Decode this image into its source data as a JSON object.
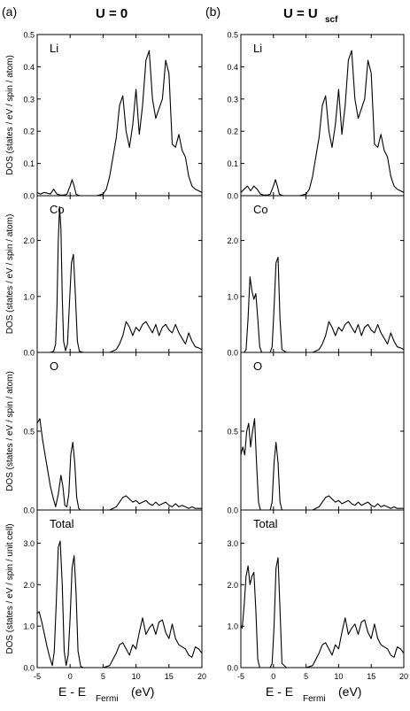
{
  "figure": {
    "left_label": "(a)",
    "right_label": "(b)",
    "left_title": "U = 0",
    "right_title_main": "U = U",
    "right_title_sub": "scf",
    "x_label_main": "E - E",
    "x_label_sub": "Fermi",
    "x_label_unit": "(eV)"
  },
  "chart_data": [
    {
      "type": "line",
      "panel": "Li",
      "column": "U = 0",
      "label": "Li",
      "ylabel": "DOS (states / eV / spin / atom)",
      "xlim": [
        -5,
        20
      ],
      "ylim": [
        0,
        0.5
      ],
      "yticks": [
        "0.0",
        "0.1",
        "0.2",
        "0.3",
        "0.4",
        "0.5"
      ],
      "xticks": [
        "-5",
        "0",
        "5",
        "10",
        "15",
        "20"
      ],
      "x": [
        -5,
        -4.5,
        -4,
        -3.5,
        -3,
        -2.5,
        -2,
        -1.5,
        -1,
        -0.5,
        0,
        0.3,
        0.6,
        0.9,
        1.2,
        1.5,
        2,
        3,
        4,
        5,
        5.5,
        6,
        6.5,
        7,
        7.5,
        8,
        8.5,
        9,
        9.5,
        10,
        10.5,
        11,
        11.5,
        12,
        12.5,
        13,
        13.5,
        14,
        14.5,
        15,
        15.5,
        16,
        16.5,
        17,
        17.5,
        18,
        18.5,
        19,
        19.5,
        20
      ],
      "y": [
        0.01,
        0.005,
        0.01,
        0.008,
        0.005,
        0.02,
        0.005,
        0.002,
        0.002,
        0.004,
        0.03,
        0.05,
        0.03,
        0.005,
        0.002,
        0.0,
        0.0,
        0.0,
        0.0,
        0.005,
        0.02,
        0.06,
        0.12,
        0.18,
        0.28,
        0.31,
        0.2,
        0.15,
        0.22,
        0.33,
        0.19,
        0.28,
        0.42,
        0.45,
        0.3,
        0.24,
        0.27,
        0.3,
        0.42,
        0.38,
        0.16,
        0.15,
        0.19,
        0.14,
        0.12,
        0.06,
        0.03,
        0.02,
        0.015,
        0.01
      ]
    },
    {
      "type": "line",
      "panel": "Co",
      "column": "U = 0",
      "label": "Co",
      "ylabel": "DOS (states / eV / spin / atom)",
      "xlim": [
        -5,
        20
      ],
      "ylim": [
        0,
        2.8
      ],
      "yticks": [
        "0.0",
        "1.0",
        "2.0"
      ],
      "xticks": [
        "-5",
        "0",
        "5",
        "10",
        "15",
        "20"
      ],
      "x": [
        -5,
        -4,
        -3.5,
        -3,
        -2.5,
        -2.2,
        -2,
        -1.8,
        -1.6,
        -1.4,
        -1.2,
        -1,
        -0.7,
        -0.4,
        -0.1,
        0.2,
        0.5,
        0.8,
        1.1,
        1.4,
        2,
        3,
        4,
        5,
        6,
        7,
        7.5,
        8,
        8.5,
        9,
        9.5,
        10,
        10.5,
        11,
        11.5,
        12,
        12.5,
        13,
        13.5,
        14,
        14.5,
        15,
        15.5,
        16,
        16.5,
        17,
        17.5,
        18,
        18.5,
        19,
        19.5,
        20
      ],
      "y": [
        0.0,
        0.0,
        0.0,
        0.0,
        0.02,
        0.15,
        0.8,
        2.0,
        2.6,
        2.2,
        1.0,
        0.2,
        0.03,
        0.15,
        0.9,
        1.6,
        1.75,
        1.0,
        0.2,
        0.02,
        0.0,
        0.0,
        0.0,
        0.0,
        0.0,
        0.05,
        0.15,
        0.3,
        0.55,
        0.45,
        0.3,
        0.45,
        0.38,
        0.5,
        0.55,
        0.45,
        0.35,
        0.5,
        0.3,
        0.45,
        0.5,
        0.4,
        0.35,
        0.5,
        0.35,
        0.25,
        0.15,
        0.35,
        0.2,
        0.1,
        0.08,
        0.05
      ]
    },
    {
      "type": "line",
      "panel": "O",
      "column": "U = 0",
      "label": "O",
      "ylabel": "DOS (states / eV / spin / atom)",
      "xlim": [
        -5,
        20
      ],
      "ylim": [
        0,
        1.0
      ],
      "yticks": [
        "0.0",
        "0.5"
      ],
      "xticks": [
        "-5",
        "0",
        "5",
        "10",
        "15",
        "20"
      ],
      "x": [
        -5,
        -4.6,
        -4.2,
        -3.8,
        -3.4,
        -3,
        -2.6,
        -2.2,
        -1.8,
        -1.4,
        -1.1,
        -0.8,
        -0.5,
        -0.2,
        0.1,
        0.4,
        0.7,
        1.0,
        1.3,
        1.6,
        2,
        3,
        4,
        5,
        6,
        7,
        7.5,
        8,
        8.5,
        9,
        9.5,
        10,
        10.5,
        11,
        11.5,
        12,
        12.5,
        13,
        13.5,
        14,
        14.5,
        15,
        15.5,
        16,
        16.5,
        17,
        17.5,
        18,
        18.5,
        19,
        19.5,
        20
      ],
      "y": [
        0.55,
        0.58,
        0.45,
        0.35,
        0.25,
        0.15,
        0.08,
        0.02,
        0.1,
        0.22,
        0.15,
        0.03,
        0.02,
        0.1,
        0.35,
        0.43,
        0.3,
        0.08,
        0.01,
        0.0,
        0.0,
        0.0,
        0.0,
        0.0,
        0.0,
        0.02,
        0.05,
        0.08,
        0.09,
        0.07,
        0.05,
        0.06,
        0.04,
        0.05,
        0.06,
        0.04,
        0.03,
        0.05,
        0.03,
        0.04,
        0.05,
        0.03,
        0.02,
        0.04,
        0.02,
        0.03,
        0.02,
        0.01,
        0.02,
        0.01,
        0.01,
        0.01
      ]
    },
    {
      "type": "line",
      "panel": "Total",
      "column": "U = 0",
      "label": "Total",
      "ylabel": "DOS (states / eV / spin / unit cell)",
      "xlim": [
        -5,
        20
      ],
      "ylim": [
        0,
        3.8
      ],
      "yticks": [
        "0.0",
        "1.0",
        "2.0",
        "3.0"
      ],
      "xticks": [
        "-5",
        "0",
        "5",
        "10",
        "15",
        "20"
      ],
      "x": [
        -5,
        -4.7,
        -4.3,
        -3.9,
        -3.5,
        -3.1,
        -2.7,
        -2.4,
        -2.1,
        -1.8,
        -1.5,
        -1.2,
        -0.9,
        -0.6,
        -0.3,
        0,
        0.3,
        0.6,
        0.9,
        1.2,
        1.6,
        2,
        3,
        4,
        5,
        6,
        7,
        7.5,
        8,
        8.5,
        9,
        9.5,
        10,
        10.5,
        11,
        11.5,
        12,
        12.5,
        13,
        13.5,
        14,
        14.5,
        15,
        15.5,
        16,
        16.5,
        17,
        17.5,
        18,
        18.5,
        19,
        19.5,
        20
      ],
      "y": [
        1.3,
        1.35,
        1.1,
        0.8,
        0.5,
        0.25,
        0.05,
        0.4,
        1.6,
        2.9,
        3.05,
        2.0,
        0.4,
        0.05,
        0.3,
        1.2,
        2.4,
        2.7,
        1.8,
        0.4,
        0.03,
        0.0,
        0.0,
        0.0,
        0.0,
        0.05,
        0.35,
        0.55,
        0.6,
        0.45,
        0.3,
        0.55,
        0.45,
        0.85,
        1.2,
        0.8,
        0.95,
        1.05,
        0.8,
        1.1,
        1.15,
        0.85,
        0.7,
        1.05,
        0.7,
        0.55,
        0.5,
        0.45,
        0.3,
        0.25,
        0.5,
        0.45,
        0.35
      ]
    },
    {
      "type": "line",
      "panel": "Li",
      "column": "U = U_scf",
      "label": "Li",
      "ylabel": "",
      "xlim": [
        -5,
        20
      ],
      "ylim": [
        0,
        0.5
      ],
      "yticks": [
        "0.0",
        "0.1",
        "0.2",
        "0.3",
        "0.4",
        "0.5"
      ],
      "xticks": [
        "-5",
        "0",
        "5",
        "10",
        "15",
        "20"
      ],
      "x": [
        -5,
        -4.5,
        -4,
        -3.5,
        -3,
        -2.5,
        -2,
        -1.5,
        -1,
        -0.5,
        0,
        0.3,
        0.6,
        0.9,
        1.2,
        1.5,
        2,
        3,
        4,
        5,
        5.5,
        6,
        6.5,
        7,
        7.5,
        8,
        8.5,
        9,
        9.5,
        10,
        10.5,
        11,
        11.5,
        12,
        12.5,
        13,
        13.5,
        14,
        14.5,
        15,
        15.5,
        16,
        16.5,
        17,
        17.5,
        18,
        18.5,
        19,
        19.5,
        20
      ],
      "y": [
        0.01,
        0.02,
        0.03,
        0.015,
        0.03,
        0.02,
        0.005,
        0.002,
        0.002,
        0.004,
        0.03,
        0.05,
        0.03,
        0.005,
        0.002,
        0.0,
        0.0,
        0.0,
        0.0,
        0.005,
        0.02,
        0.06,
        0.12,
        0.18,
        0.28,
        0.31,
        0.2,
        0.15,
        0.22,
        0.33,
        0.19,
        0.28,
        0.42,
        0.45,
        0.3,
        0.24,
        0.27,
        0.3,
        0.42,
        0.38,
        0.16,
        0.15,
        0.19,
        0.14,
        0.12,
        0.06,
        0.03,
        0.02,
        0.015,
        0.01
      ]
    },
    {
      "type": "line",
      "panel": "Co",
      "column": "U = U_scf",
      "label": "Co",
      "ylabel": "",
      "xlim": [
        -5,
        20
      ],
      "ylim": [
        0,
        2.8
      ],
      "yticks": [
        "0.0",
        "1.0",
        "2.0"
      ],
      "xticks": [
        "-5",
        "0",
        "5",
        "10",
        "15",
        "20"
      ],
      "x": [
        -5,
        -4.5,
        -4.2,
        -3.9,
        -3.6,
        -3.3,
        -3,
        -2.7,
        -2.4,
        -2.1,
        -1.8,
        -1.5,
        -1,
        -0.5,
        -0.2,
        0.1,
        0.4,
        0.7,
        1.0,
        1.3,
        2,
        3,
        4,
        5,
        6,
        7,
        7.5,
        8,
        8.5,
        9,
        9.5,
        10,
        10.5,
        11,
        11.5,
        12,
        12.5,
        13,
        13.5,
        14,
        14.5,
        15,
        15.5,
        16,
        16.5,
        17,
        17.5,
        18,
        18.5,
        19,
        19.5,
        20
      ],
      "y": [
        0.0,
        0.0,
        0.05,
        0.6,
        1.35,
        1.1,
        0.95,
        1.05,
        0.6,
        0.1,
        0.0,
        0.0,
        0.0,
        0.0,
        0.1,
        0.8,
        1.6,
        1.7,
        0.6,
        0.05,
        0.0,
        0.0,
        0.0,
        0.0,
        0.0,
        0.05,
        0.15,
        0.3,
        0.55,
        0.45,
        0.3,
        0.45,
        0.38,
        0.5,
        0.55,
        0.45,
        0.35,
        0.5,
        0.3,
        0.45,
        0.5,
        0.4,
        0.35,
        0.5,
        0.35,
        0.25,
        0.15,
        0.35,
        0.2,
        0.1,
        0.08,
        0.05
      ]
    },
    {
      "type": "line",
      "panel": "O",
      "column": "U = U_scf",
      "label": "O",
      "ylabel": "",
      "xlim": [
        -5,
        20
      ],
      "ylim": [
        0,
        1.0
      ],
      "yticks": [
        "0.0",
        "0.5"
      ],
      "xticks": [
        "-5",
        "0",
        "5",
        "10",
        "15",
        "20"
      ],
      "x": [
        -5,
        -4.7,
        -4.4,
        -4.1,
        -3.8,
        -3.5,
        -3.2,
        -2.9,
        -2.6,
        -2.3,
        -2,
        -1.5,
        -1,
        -0.5,
        -0.2,
        0.1,
        0.4,
        0.7,
        1.0,
        1.3,
        2,
        3,
        4,
        5,
        6,
        7,
        7.5,
        8,
        8.5,
        9,
        9.5,
        10,
        10.5,
        11,
        11.5,
        12,
        12.5,
        13,
        13.5,
        14,
        14.5,
        15,
        15.5,
        16,
        16.5,
        17,
        17.5,
        18,
        18.5,
        19,
        19.5,
        20
      ],
      "y": [
        0.35,
        0.4,
        0.35,
        0.5,
        0.55,
        0.4,
        0.5,
        0.58,
        0.3,
        0.05,
        0.0,
        0.0,
        0.0,
        0.0,
        0.05,
        0.3,
        0.43,
        0.3,
        0.05,
        0.0,
        0.0,
        0.0,
        0.0,
        0.0,
        0.0,
        0.02,
        0.05,
        0.08,
        0.09,
        0.07,
        0.05,
        0.06,
        0.04,
        0.05,
        0.06,
        0.04,
        0.03,
        0.05,
        0.03,
        0.04,
        0.05,
        0.03,
        0.02,
        0.04,
        0.02,
        0.03,
        0.02,
        0.01,
        0.02,
        0.01,
        0.01,
        0.01
      ]
    },
    {
      "type": "line",
      "panel": "Total",
      "column": "U = U_scf",
      "label": "Total",
      "ylabel": "",
      "xlim": [
        -5,
        20
      ],
      "ylim": [
        0,
        3.8
      ],
      "yticks": [
        "0.0",
        "1.0",
        "2.0",
        "3.0"
      ],
      "xticks": [
        "-5",
        "0",
        "5",
        "10",
        "15",
        "20"
      ],
      "x": [
        -5,
        -4.8,
        -4.5,
        -4.2,
        -3.9,
        -3.6,
        -3.3,
        -3,
        -2.7,
        -2.4,
        -2.1,
        -1.8,
        -1.5,
        -1,
        -0.5,
        -0.2,
        0.1,
        0.4,
        0.7,
        1.0,
        1.3,
        2,
        3,
        4,
        5,
        6,
        7,
        7.5,
        8,
        8.5,
        9,
        9.5,
        10,
        10.5,
        11,
        11.5,
        12,
        12.5,
        13,
        13.5,
        14,
        14.5,
        15,
        15.5,
        16,
        16.5,
        17,
        17.5,
        18,
        18.5,
        19,
        19.5,
        20
      ],
      "y": [
        1.0,
        0.95,
        1.5,
        2.2,
        2.45,
        2.0,
        2.2,
        2.3,
        1.4,
        0.2,
        0.0,
        0.0,
        0.0,
        0.0,
        0.0,
        0.1,
        1.0,
        2.4,
        2.65,
        1.4,
        0.1,
        0.0,
        0.0,
        0.0,
        0.0,
        0.05,
        0.35,
        0.55,
        0.6,
        0.45,
        0.3,
        0.55,
        0.45,
        0.85,
        1.2,
        0.8,
        0.95,
        1.05,
        0.8,
        1.1,
        1.15,
        0.85,
        0.7,
        1.05,
        0.7,
        0.55,
        0.5,
        0.45,
        0.3,
        0.25,
        0.5,
        0.45,
        0.35
      ]
    }
  ]
}
